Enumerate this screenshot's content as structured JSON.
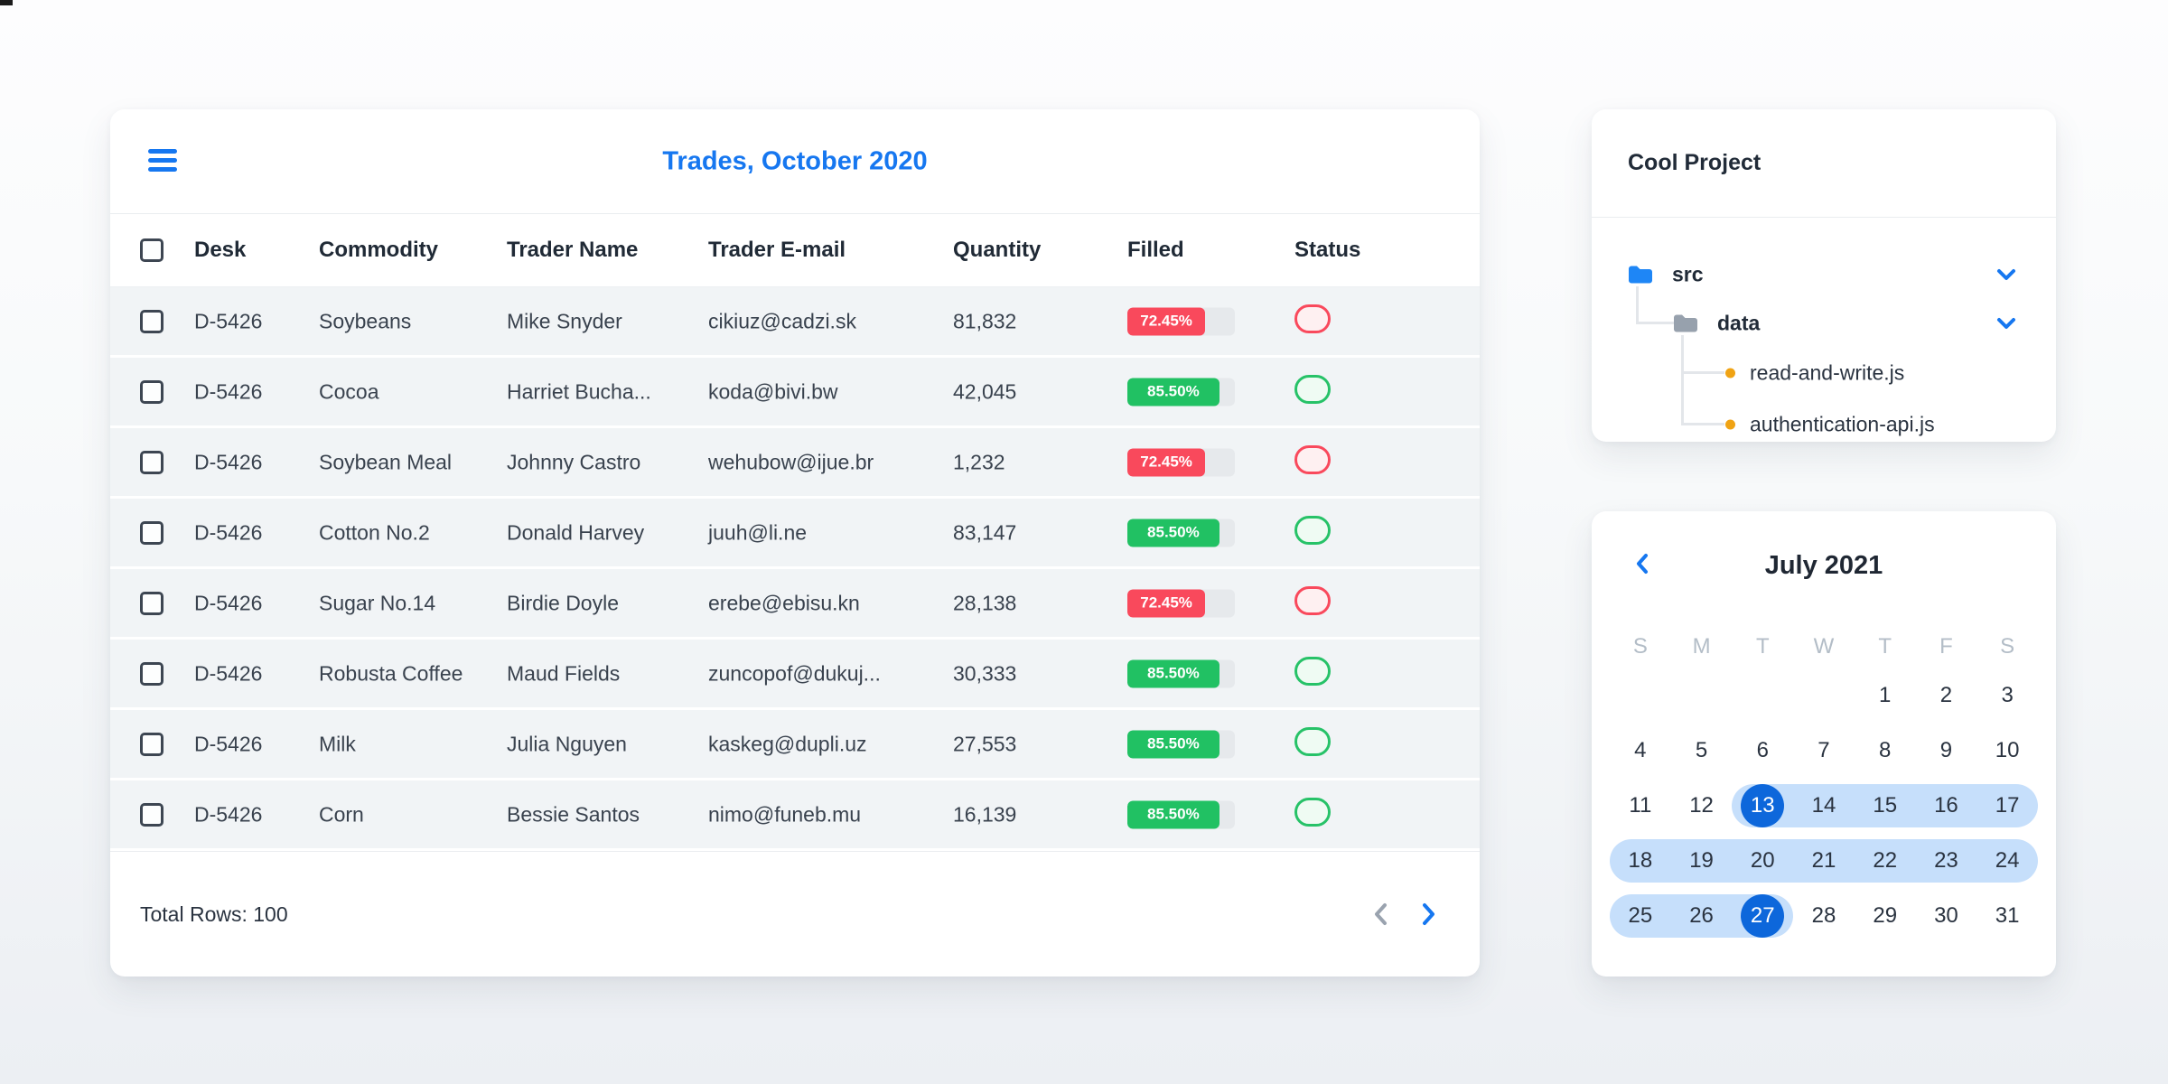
{
  "colors": {
    "accent_blue": "#1677F0",
    "selected_day_blue": "#0D67DB",
    "range_light_blue": "#C6DFFB",
    "red": "#F9495C",
    "green": "#21C163",
    "row_gray": "#F1F4F6",
    "folder_blue": "#1E86F6",
    "folder_gray": "#97A1AD",
    "file_dot_orange": "#F0A314"
  },
  "trades": {
    "title": "Trades, October 2020",
    "columns": [
      "Desk",
      "Commodity",
      "Trader Name",
      "Trader E-mail",
      "Quantity",
      "Filled",
      "Status"
    ],
    "rows": [
      {
        "desk": "D-5426",
        "commodity": "Soybeans",
        "trader": "Mike Snyder",
        "email": "cikiuz@cadzi.sk",
        "quantity": "81,832",
        "filled_pct": "72.45%",
        "filled_value": 72.45,
        "status": "Rejected"
      },
      {
        "desk": "D-5426",
        "commodity": "Cocoa",
        "trader": "Harriet Bucha...",
        "email": "koda@bivi.bw",
        "quantity": "42,045",
        "filled_pct": "85.50%",
        "filled_value": 85.5,
        "status": "Filled"
      },
      {
        "desk": "D-5426",
        "commodity": "Soybean Meal",
        "trader": "Johnny Castro",
        "email": "wehubow@ijue.br",
        "quantity": "1,232",
        "filled_pct": "72.45%",
        "filled_value": 72.45,
        "status": "Rejected"
      },
      {
        "desk": "D-5426",
        "commodity": "Cotton No.2",
        "trader": "Donald Harvey",
        "email": "juuh@li.ne",
        "quantity": "83,147",
        "filled_pct": "85.50%",
        "filled_value": 85.5,
        "status": "Filled"
      },
      {
        "desk": "D-5426",
        "commodity": "Sugar No.14",
        "trader": "Birdie Doyle",
        "email": "erebe@ebisu.kn",
        "quantity": "28,138",
        "filled_pct": "72.45%",
        "filled_value": 72.45,
        "status": "Rejected"
      },
      {
        "desk": "D-5426",
        "commodity": "Robusta Coffee",
        "trader": "Maud Fields",
        "email": "zuncopof@dukuj...",
        "quantity": "30,333",
        "filled_pct": "85.50%",
        "filled_value": 85.5,
        "status": "Filled"
      },
      {
        "desk": "D-5426",
        "commodity": "Milk",
        "trader": "Julia Nguyen",
        "email": "kaskeg@dupli.uz",
        "quantity": "27,553",
        "filled_pct": "85.50%",
        "filled_value": 85.5,
        "status": "Filled"
      },
      {
        "desk": "D-5426",
        "commodity": "Corn",
        "trader": "Bessie Santos",
        "email": "nimo@funeb.mu",
        "quantity": "16,139",
        "filled_pct": "85.50%",
        "filled_value": 85.5,
        "status": "Filled"
      }
    ],
    "footer": {
      "total_label": "Total Rows: 100"
    }
  },
  "project": {
    "title": "Cool Project",
    "tree": {
      "folder1": "src",
      "folder2": "data",
      "file1": "read-and-write.js",
      "file2": "authentication-api.js"
    }
  },
  "calendar": {
    "title": "July 2021",
    "day_headers": [
      "S",
      "M",
      "T",
      "W",
      "T",
      "F",
      "S"
    ],
    "weeks": [
      {
        "days": [
          null,
          null,
          null,
          null,
          1,
          2,
          3
        ],
        "range": null
      },
      {
        "days": [
          4,
          5,
          6,
          7,
          8,
          9,
          10
        ],
        "range": null
      },
      {
        "days": [
          11,
          12,
          13,
          14,
          15,
          16,
          17
        ],
        "range": {
          "startCol": 2,
          "endCol": 6
        }
      },
      {
        "days": [
          18,
          19,
          20,
          21,
          22,
          23,
          24
        ],
        "range": {
          "startCol": 0,
          "endCol": 6
        }
      },
      {
        "days": [
          25,
          26,
          27,
          28,
          29,
          30,
          31
        ],
        "range": {
          "startCol": 0,
          "endCol": 2
        }
      }
    ],
    "selected_days": [
      13,
      27
    ]
  }
}
